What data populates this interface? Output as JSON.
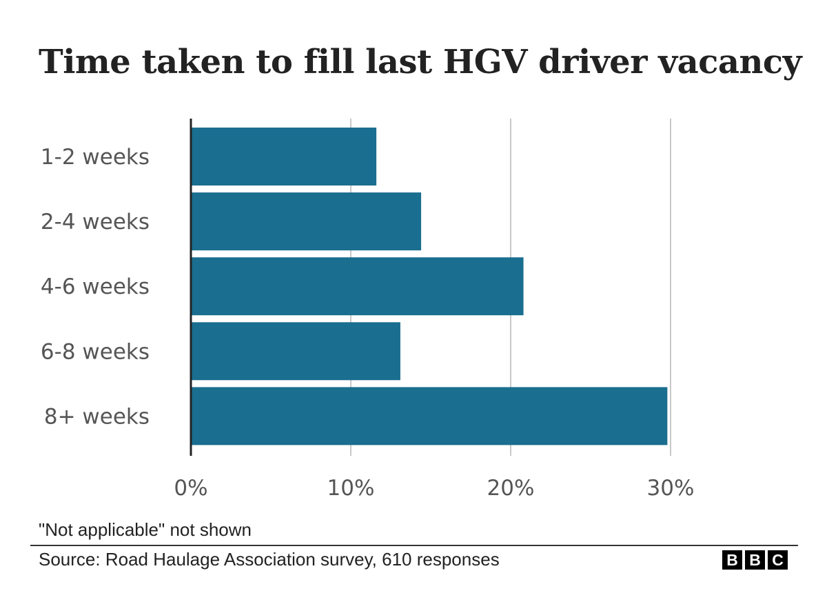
{
  "chart_data": {
    "type": "bar",
    "orientation": "horizontal",
    "title": "Time taken to fill last HGV driver vacancy",
    "categories": [
      "1-2 weeks",
      "2-4 weeks",
      "4-6 weeks",
      "6-8 weeks",
      "8+ weeks"
    ],
    "values": [
      11.6,
      14.4,
      20.8,
      13.1,
      29.8
    ],
    "xlim": [
      0,
      30
    ],
    "xticks": [
      0,
      10,
      20,
      30
    ],
    "xtick_labels": [
      "0%",
      "10%",
      "20%",
      "30%"
    ],
    "xlabel": "",
    "ylabel": "",
    "grid": true,
    "bar_color": "#1a6e8f",
    "gridline_color": "#c8c8c8"
  },
  "footer": {
    "note": "\"Not applicable\" not shown",
    "source": "Source: Road Haulage Association survey, 610 responses",
    "logo_letters": [
      "B",
      "B",
      "C"
    ]
  }
}
